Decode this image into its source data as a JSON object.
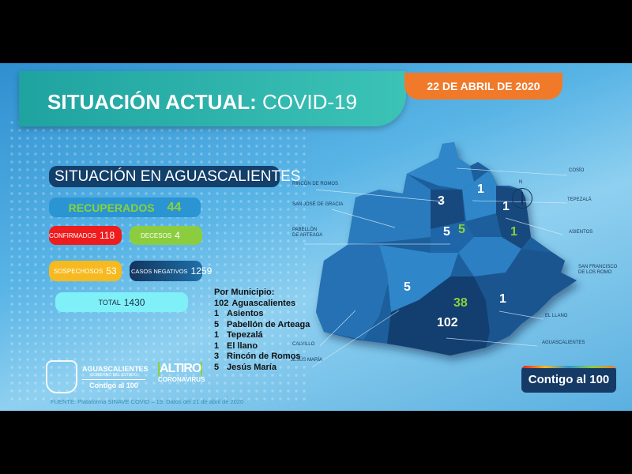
{
  "header": {
    "title_bold": "SITUACIÓN ACTUAL:",
    "title_light": "COVID-19",
    "date": "22 DE ABRIL DE 2020"
  },
  "stats": {
    "subtitle": "SITUACIÓN EN AGUASCALIENTES",
    "recuperados": {
      "label": "RECUPERADOS",
      "value": "44"
    },
    "confirmados": {
      "label": "CONFIRMADOS",
      "value": "118"
    },
    "decesos": {
      "label": "DECESOS",
      "value": "4"
    },
    "sospechosos": {
      "label": "SOSPECHOSOS",
      "value": "53"
    },
    "negativos": {
      "label": "CASOS NEGATIVOS",
      "value": "1259"
    },
    "total": {
      "label": "TOTAL",
      "value": "1430"
    }
  },
  "municipios": {
    "heading": "Por Municipio:",
    "items": [
      {
        "count": "102",
        "name": "Aguascalientes"
      },
      {
        "count": "1",
        "name": "Asientos"
      },
      {
        "count": "5",
        "name": "Pabellón de Arteaga"
      },
      {
        "count": "1",
        "name": "Tepezalá"
      },
      {
        "count": "1",
        "name": "El llano"
      },
      {
        "count": "3",
        "name": "Rincón de Romos"
      },
      {
        "count": "5",
        "name": "Jesús María"
      }
    ]
  },
  "map": {
    "labels": {
      "cosio": "COSÍO",
      "tepezala": "TEPEZALÁ",
      "asientos": "ASIENTOS",
      "sanfrancisco": "SAN FRANCISCO DE LOS ROMO",
      "elllano": "EL LLANO",
      "aguascalientes": "AGUASCALIENTES",
      "calvillo": "CALVILLO",
      "jesusmaria": "JESÚS MARÍA",
      "rincon": "RINCÓN DE ROMOS",
      "sanjose": "SAN JOSÉ DE GRACIA",
      "pabellon": "PABELLÓN DE ARTEAGA"
    },
    "numbers": {
      "rincon": "3",
      "tepezala": "1",
      "asientos_top": "1",
      "pabellon": "5",
      "pabellon_rec": "5",
      "asientos_rec": "1",
      "jesusmaria": "5",
      "ags_rec": "38",
      "ags": "102",
      "elllano": "1"
    },
    "compass": "N",
    "colors": {
      "recovered": "#8bd13a",
      "cases": "#ffffff"
    }
  },
  "footer": {
    "source": "FUENTE: Plataforma SINAVE COVID – 19. Datos del 21 de abril de 2020",
    "gov": {
      "name": "AGUASCALIENTES",
      "sub": "GOBIERNO DEL ESTADO",
      "slogan": "Contigo al 100"
    },
    "altiro": {
      "a": "ALTIRO",
      "b": "CORONAVIRUS"
    },
    "contigo": "Contigo al 100"
  }
}
